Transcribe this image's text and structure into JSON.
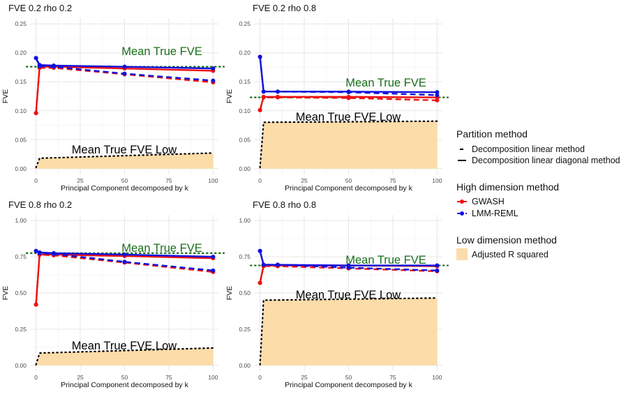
{
  "chart_data": {
    "type": "line",
    "x_axis": {
      "label": "Principal Component decomposed by k",
      "ticks": [
        0,
        25,
        50,
        75,
        100
      ],
      "xlim": [
        -3,
        103
      ]
    },
    "y_axis": {
      "label": "FVE"
    },
    "legend": {
      "position": "right",
      "partition": {
        "title": "Partition method",
        "entries": [
          "Decomposition linear method",
          "Decomposition linear diagonal method"
        ]
      },
      "high": {
        "title": "High dimension method",
        "entries": [
          "GWASH",
          "LMM-REML"
        ]
      },
      "low": {
        "title": "Low dimension method",
        "entries": [
          "Adjusted R squared"
        ]
      }
    },
    "colors": {
      "GWASH": "#ee1111",
      "LMM-REML": "#1111dd",
      "adjusted_r2_fill": "#fcdca8",
      "mean_true_fve": "#1a6e1a"
    },
    "annotation_labels": {
      "mean_true": "Mean True FVE",
      "mean_true_low": "Mean True FVE Low"
    },
    "panels": [
      {
        "title": "FVE 0.2 rho 0.2",
        "ylim": [
          0,
          0.25
        ],
        "yticks": [
          0,
          0.05,
          0.1,
          0.15,
          0.2,
          0.25
        ],
        "ytick_labels": [
          "0.00",
          "0.05",
          "0.10",
          "0.15",
          "0.20",
          "0.25"
        ],
        "mean_true": 0.176,
        "mean_true_low": {
          "x": [
            0,
            2,
            100
          ],
          "y": [
            0.002,
            0.018,
            0.027
          ]
        },
        "adj_r2": {
          "x": [
            0,
            2,
            100
          ],
          "y": [
            0.002,
            0.018,
            0.027
          ]
        },
        "series": [
          {
            "method": "GWASH",
            "partition": "linear",
            "x": [
              0,
              2,
              10,
              50,
              100
            ],
            "y": [
              0.096,
              0.174,
              0.174,
              0.163,
              0.149
            ]
          },
          {
            "method": "GWASH",
            "partition": "diagonal",
            "x": [
              0,
              2,
              10,
              50,
              100
            ],
            "y": [
              0.096,
              0.176,
              0.176,
              0.173,
              0.169
            ]
          },
          {
            "method": "LMM-REML",
            "partition": "linear",
            "x": [
              0,
              2,
              10,
              50,
              100
            ],
            "y": [
              0.191,
              0.177,
              0.176,
              0.164,
              0.152
            ]
          },
          {
            "method": "LMM-REML",
            "partition": "diagonal",
            "x": [
              0,
              2,
              10,
              50,
              100
            ],
            "y": [
              0.191,
              0.179,
              0.178,
              0.176,
              0.173
            ]
          }
        ]
      },
      {
        "title": "FVE 0.2 rho 0.8",
        "ylim": [
          0,
          0.25
        ],
        "yticks": [
          0,
          0.05,
          0.1,
          0.15,
          0.2,
          0.25
        ],
        "ytick_labels": [
          "0.00",
          "0.05",
          "0.10",
          "0.15",
          "0.20",
          "0.25"
        ],
        "mean_true": 0.123,
        "mean_true_low": {
          "x": [
            0,
            2,
            100
          ],
          "y": [
            0.002,
            0.08,
            0.082
          ]
        },
        "adj_r2": {
          "x": [
            0,
            2,
            100
          ],
          "y": [
            0.002,
            0.08,
            0.082
          ]
        },
        "series": [
          {
            "method": "GWASH",
            "partition": "linear",
            "x": [
              0,
              2,
              10,
              50,
              100
            ],
            "y": [
              0.101,
              0.123,
              0.123,
              0.122,
              0.118
            ]
          },
          {
            "method": "GWASH",
            "partition": "diagonal",
            "x": [
              0,
              2,
              10,
              50,
              100
            ],
            "y": [
              0.101,
              0.124,
              0.124,
              0.124,
              0.123
            ]
          },
          {
            "method": "LMM-REML",
            "partition": "linear",
            "x": [
              0,
              2,
              10,
              50,
              100
            ],
            "y": [
              0.193,
              0.133,
              0.133,
              0.132,
              0.127
            ]
          },
          {
            "method": "LMM-REML",
            "partition": "diagonal",
            "x": [
              0,
              2,
              10,
              50,
              100
            ],
            "y": [
              0.193,
              0.133,
              0.133,
              0.133,
              0.132
            ]
          }
        ]
      },
      {
        "title": "FVE 0.8 rho 0.2",
        "ylim": [
          0,
          1
        ],
        "yticks": [
          0,
          0.25,
          0.5,
          0.75,
          1
        ],
        "ytick_labels": [
          "0.00",
          "0.25",
          "0.50",
          "0.75",
          "1.00"
        ],
        "mean_true": 0.775,
        "mean_true_low": {
          "x": [
            0,
            2,
            100
          ],
          "y": [
            0.005,
            0.085,
            0.12
          ]
        },
        "adj_r2": {
          "x": [
            0,
            2,
            100
          ],
          "y": [
            0.005,
            0.085,
            0.12
          ]
        },
        "series": [
          {
            "method": "GWASH",
            "partition": "linear",
            "x": [
              0,
              2,
              10,
              50,
              100
            ],
            "y": [
              0.42,
              0.765,
              0.76,
              0.71,
              0.645
            ]
          },
          {
            "method": "GWASH",
            "partition": "diagonal",
            "x": [
              0,
              2,
              10,
              50,
              100
            ],
            "y": [
              0.42,
              0.765,
              0.765,
              0.755,
              0.74
            ]
          },
          {
            "method": "LMM-REML",
            "partition": "linear",
            "x": [
              0,
              2,
              10,
              50,
              100
            ],
            "y": [
              0.79,
              0.775,
              0.77,
              0.715,
              0.655
            ]
          },
          {
            "method": "LMM-REML",
            "partition": "diagonal",
            "x": [
              0,
              2,
              10,
              50,
              100
            ],
            "y": [
              0.79,
              0.78,
              0.775,
              0.765,
              0.75
            ]
          }
        ]
      },
      {
        "title": "FVE 0.8 rho 0.8",
        "ylim": [
          0,
          1
        ],
        "yticks": [
          0,
          0.25,
          0.5,
          0.75,
          1
        ],
        "ytick_labels": [
          "0.00",
          "0.25",
          "0.50",
          "0.75",
          "1.00"
        ],
        "mean_true": 0.69,
        "mean_true_low": {
          "x": [
            0,
            2,
            100
          ],
          "y": [
            0.005,
            0.45,
            0.465
          ]
        },
        "adj_r2": {
          "x": [
            0,
            2,
            100
          ],
          "y": [
            0.005,
            0.45,
            0.465
          ]
        },
        "series": [
          {
            "method": "GWASH",
            "partition": "linear",
            "x": [
              0,
              2,
              10,
              50,
              100
            ],
            "y": [
              0.57,
              0.685,
              0.685,
              0.67,
              0.65
            ]
          },
          {
            "method": "GWASH",
            "partition": "diagonal",
            "x": [
              0,
              2,
              10,
              50,
              100
            ],
            "y": [
              0.57,
              0.69,
              0.69,
              0.69,
              0.685
            ]
          },
          {
            "method": "LMM-REML",
            "partition": "linear",
            "x": [
              0,
              2,
              10,
              50,
              100
            ],
            "y": [
              0.79,
              0.695,
              0.695,
              0.675,
              0.655
            ]
          },
          {
            "method": "LMM-REML",
            "partition": "diagonal",
            "x": [
              0,
              2,
              10,
              50,
              100
            ],
            "y": [
              0.79,
              0.695,
              0.695,
              0.69,
              0.69
            ]
          }
        ]
      }
    ]
  }
}
